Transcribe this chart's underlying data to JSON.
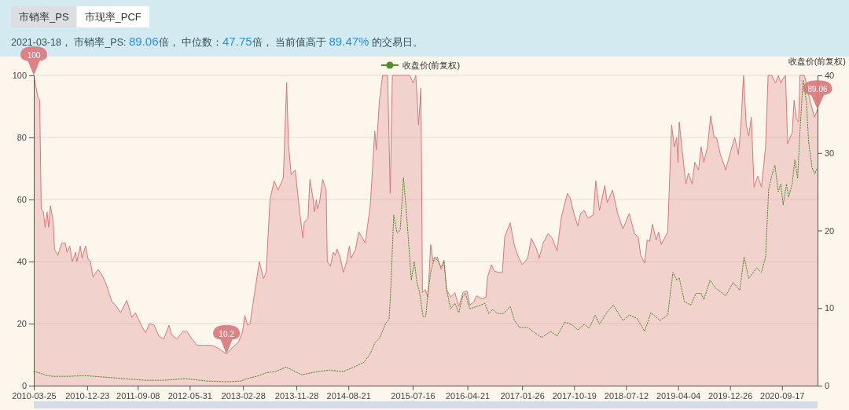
{
  "chart_data": {
    "type": "area",
    "subtitle": "2021-03-18， 市销率_PS: 89.06倍， 中位数：47.75倍， 当前值高于 89.47% 的交易日。",
    "y2label": "收盘价(前复权)",
    "annotations": [
      "市销率_PS",
      "市现率_PCF",
      {
        "text": "100",
        "x": "2010-03-25",
        "y": 100
      },
      {
        "text": "10.2",
        "x": "2012-12-05",
        "y": 10.2
      },
      {
        "text": "89.06",
        "x": "2021-03-18",
        "y": 89.06
      }
    ],
    "xlim": [
      "2010-03-25",
      "2021-03-18"
    ],
    "xticks": [
      "2010-03-25",
      "2010-12-23",
      "2011-09-08",
      "2012-05-31",
      "2013-02-28",
      "2013-11-28",
      "2014-08-21",
      "2015-07-16",
      "2016-04-21",
      "2017-01-26",
      "2017-10-19",
      "2018-07-12",
      "2019-04-04",
      "2019-12-26",
      "2020-09-17"
    ],
    "ylim": [
      0,
      100
    ],
    "yticks": [
      0,
      20,
      40,
      60,
      80,
      100
    ],
    "y2lim": [
      0,
      40
    ],
    "y2ticks": [
      0,
      10,
      20,
      30,
      40
    ],
    "grid": "y",
    "legend": "top",
    "series": [
      {
        "color": "#d9777b",
        "x": [
          "2010-03-25",
          "2010-04-15",
          "2010-04-24",
          "2010-05-02",
          "2010-05-13",
          "2010-05-22",
          "2010-06-01",
          "2010-06-09",
          "2010-06-18",
          "2010-07-02",
          "2010-07-09",
          "2010-07-26",
          "2010-08-15",
          "2010-09-02",
          "2010-09-11",
          "2010-09-25",
          "2010-10-08",
          "2010-10-25",
          "2010-10-31",
          "2010-11-18",
          "2010-11-27",
          "2010-12-05",
          "2010-12-15",
          "2010-12-27",
          "2011-01-09",
          "2011-01-22",
          "2011-02-17",
          "2011-03-15",
          "2011-04-03",
          "2011-04-29",
          "2011-05-17",
          "2011-06-12",
          "2011-07-14",
          "2011-08-09",
          "2011-08-27",
          "2011-09-30",
          "2011-10-19",
          "2011-11-06",
          "2011-12-01",
          "2011-12-25",
          "2012-01-19",
          "2012-02-15",
          "2012-02-28",
          "2012-03-26",
          "2012-04-27",
          "2012-05-16",
          "2012-06-12",
          "2012-07-09",
          "2012-08-12",
          "2012-09-22",
          "2012-10-25",
          "2012-12-05",
          "2013-01-08",
          "2013-02-04",
          "2013-02-24",
          "2013-03-09",
          "2013-03-23",
          "2013-04-05",
          "2013-04-25",
          "2013-05-22",
          "2013-06-13",
          "2013-06-26",
          "2013-07-16",
          "2013-08-06",
          "2013-08-26",
          "2013-09-22",
          "2013-10-09",
          "2013-10-18",
          "2013-11-01",
          "2013-11-22",
          "2013-12-11",
          "2013-12-31",
          "2014-01-07",
          "2014-01-26",
          "2014-02-05",
          "2014-02-22",
          "2014-02-28",
          "2014-03-10",
          "2014-03-16",
          "2014-03-26",
          "2014-04-11",
          "2014-04-29",
          "2014-05-05",
          "2014-05-21",
          "2014-06-04",
          "2014-06-14",
          "2014-06-24",
          "2014-07-09",
          "2014-07-26",
          "2014-08-12",
          "2014-08-26",
          "2014-09-03",
          "2014-09-27",
          "2014-10-13",
          "2014-11-15",
          "2014-12-11",
          "2015-01-03",
          "2015-01-11",
          "2015-01-27",
          "2015-02-12",
          "2015-03-10",
          "2015-03-23",
          "2015-04-03",
          "2015-07-01",
          "2015-07-18",
          "2015-08-01",
          "2015-08-15",
          "2015-08-27",
          "2015-09-04",
          "2015-09-18",
          "2015-10-02",
          "2015-10-16",
          "2015-10-28",
          "2015-11-19",
          "2015-12-09",
          "2015-12-23",
          "2016-01-06",
          "2016-01-26",
          "2016-02-17",
          "2016-03-08",
          "2016-03-29",
          "2016-04-19",
          "2016-05-03",
          "2016-05-24",
          "2016-06-07",
          "2016-07-05",
          "2016-07-25",
          "2016-08-02",
          "2016-08-22",
          "2016-09-05",
          "2016-09-24",
          "2016-10-17",
          "2016-10-29",
          "2016-11-26",
          "2016-12-18",
          "2017-01-07",
          "2017-01-27",
          "2017-02-23",
          "2017-03-14",
          "2017-04-10",
          "2017-04-23",
          "2017-05-14",
          "2017-06-08",
          "2017-06-29",
          "2017-07-24",
          "2017-08-14",
          "2017-09-02",
          "2017-09-15",
          "2017-09-29",
          "2017-10-18",
          "2017-11-07",
          "2017-11-21",
          "2017-12-10",
          "2017-12-29",
          "2018-01-25",
          "2018-02-07",
          "2018-02-26",
          "2018-03-25",
          "2018-04-07",
          "2018-05-04",
          "2018-05-30",
          "2018-06-26",
          "2018-07-28",
          "2018-08-24",
          "2018-09-12",
          "2018-09-25",
          "2018-10-15",
          "2018-10-28",
          "2018-11-10",
          "2018-11-24",
          "2018-12-13",
          "2018-12-26",
          "2019-01-08",
          "2019-02-10",
          "2019-03-02",
          "2019-03-16",
          "2019-03-28",
          "2019-04-04",
          "2019-04-10",
          "2019-04-23",
          "2019-05-14",
          "2019-05-27",
          "2019-06-15",
          "2019-06-29",
          "2019-07-18",
          "2019-07-31",
          "2019-08-14",
          "2019-09-02",
          "2019-09-18",
          "2019-10-06",
          "2019-10-18",
          "2019-11-07",
          "2019-12-04",
          "2019-12-29",
          "2020-01-19",
          "2020-02-07",
          "2020-02-20",
          "2020-03-04",
          "2020-03-18",
          "2020-03-31",
          "2020-04-13",
          "2020-04-27",
          "2020-05-16",
          "2020-06-04",
          "2020-06-25",
          "2020-07-08",
          "2020-07-27",
          "2020-08-15",
          "2020-08-29",
          "2020-09-11",
          "2020-09-23",
          "2020-10-05",
          "2020-10-16",
          "2020-10-28",
          "2020-11-08",
          "2020-11-18",
          "2020-11-30",
          "2020-12-11",
          "2020-12-18",
          "2021-01-10",
          "2021-02-07",
          "2021-03-02",
          "2021-03-18"
        ],
        "values": [
          100,
          93,
          92,
          57,
          56,
          51,
          56,
          51,
          58,
          53,
          44,
          42,
          46,
          46,
          43,
          45,
          40,
          43,
          40,
          45,
          41,
          43,
          45,
          41,
          40,
          35,
          37.5,
          35,
          32,
          27,
          26,
          23.5,
          27.5,
          22,
          23.5,
          19,
          17,
          20,
          19.5,
          16,
          15,
          19.5,
          16.5,
          15,
          17.5,
          17.5,
          15,
          13,
          13,
          13,
          12,
          10.2,
          12.5,
          14,
          17,
          22.6,
          19.5,
          20,
          28.6,
          40,
          34.5,
          36.6,
          60,
          66,
          63,
          67,
          97.7,
          78,
          68,
          69.5,
          58,
          47.6,
          52.6,
          54,
          66.5,
          60,
          56,
          60,
          57,
          59,
          66.5,
          63,
          40,
          38.5,
          43,
          42,
          44,
          41.5,
          36.5,
          40,
          45,
          41,
          44,
          49.6,
          46,
          58,
          82,
          76,
          92,
          100,
          100,
          62,
          100,
          100,
          97.5,
          100,
          84,
          96,
          30,
          31,
          28.5,
          45.5,
          40,
          41.5,
          37.5,
          40.5,
          31,
          28.5,
          30,
          25.5,
          30,
          30.5,
          26,
          27,
          29,
          28,
          28.5,
          35,
          39,
          37,
          36.5,
          36.5,
          48,
          52.5,
          45,
          41.5,
          39,
          41,
          47.5,
          44,
          41,
          46,
          49,
          47.5,
          43.5,
          54,
          59,
          62,
          60.5,
          55.5,
          51.5,
          55.5,
          56.5,
          54,
          55,
          66,
          56.5,
          64.5,
          59,
          63,
          55.5,
          50.5,
          55.5,
          49,
          48,
          42,
          39.5,
          47,
          46.5,
          52,
          47,
          49.5,
          45.5,
          49.5,
          84,
          77,
          80,
          72,
          85,
          77,
          65,
          68.5,
          65,
          72,
          69.5,
          77,
          72,
          77,
          87,
          80,
          80,
          74.5,
          69.5,
          75.5,
          80,
          74.5,
          84,
          100,
          84,
          80.5,
          86.5,
          64,
          67.5,
          64,
          77,
          100,
          100,
          97.5,
          100,
          97.5,
          99,
          100,
          78,
          80,
          81.5,
          92,
          86,
          85,
          100,
          100,
          92,
          86.5,
          89.06
        ]
      },
      {
        "type": "line",
        "name": "收盘价(前复权)",
        "axis": "y2",
        "color": "#4f8f2c",
        "line_style": "dotted",
        "x": [
          "2010-03-25",
          "2010-04-15",
          "2010-06-01",
          "2010-06-29",
          "2010-09-17",
          "2010-12-08",
          "2011-03-21",
          "2011-07-01",
          "2011-10-13",
          "2012-01-26",
          "2012-05-10",
          "2012-08-25",
          "2012-12-11",
          "2013-02-17",
          "2013-03-17",
          "2013-05-09",
          "2013-07-02",
          "2013-08-12",
          "2013-10-06",
          "2013-12-25",
          "2014-03-13",
          "2014-05-18",
          "2014-07-23",
          "2014-09-19",
          "2014-11-08",
          "2014-12-11",
          "2015-01-03",
          "2015-01-27",
          "2015-03-01",
          "2015-03-17",
          "2015-03-25",
          "2015-04-10",
          "2015-04-27",
          "2015-05-13",
          "2015-05-30",
          "2015-06-15",
          "2015-07-09",
          "2015-07-24",
          "2015-08-07",
          "2015-08-21",
          "2015-09-07",
          "2015-09-21",
          "2015-10-02",
          "2015-10-16",
          "2015-11-05",
          "2015-11-25",
          "2015-12-09",
          "2015-12-23",
          "2016-01-06",
          "2016-01-26",
          "2016-02-17",
          "2016-03-08",
          "2016-03-29",
          "2016-04-11",
          "2016-05-03",
          "2016-06-07",
          "2016-07-19",
          "2016-08-08",
          "2016-08-28",
          "2016-09-24",
          "2016-10-23",
          "2016-11-26",
          "2016-12-18",
          "2017-01-13",
          "2017-02-23",
          "2017-03-28",
          "2017-05-07",
          "2017-06-21",
          "2017-07-24",
          "2017-09-02",
          "2017-10-05",
          "2017-11-07",
          "2017-12-10",
          "2018-01-05",
          "2018-02-04",
          "2018-02-26",
          "2018-04-01",
          "2018-05-07",
          "2018-06-26",
          "2018-07-28",
          "2018-09-05",
          "2018-10-15",
          "2018-11-16",
          "2019-01-02",
          "2019-02-10",
          "2019-03-09",
          "2019-03-28",
          "2019-04-10",
          "2019-05-07",
          "2019-06-08",
          "2019-07-05",
          "2019-07-31",
          "2019-08-14",
          "2019-09-15",
          "2019-10-12",
          "2019-12-04",
          "2020-01-11",
          "2020-02-14",
          "2020-03-07",
          "2020-03-31",
          "2020-05-10",
          "2020-06-04",
          "2020-06-25",
          "2020-07-11",
          "2020-07-27",
          "2020-08-12",
          "2020-08-29",
          "2020-09-11",
          "2020-09-23",
          "2020-10-10",
          "2020-10-21",
          "2020-11-08",
          "2020-11-22",
          "2020-12-06",
          "2020-12-18",
          "2021-01-03",
          "2021-01-20",
          "2021-01-31",
          "2021-02-18",
          "2021-03-04",
          "2021-03-15"
        ],
        "values": [
          1.8,
          1.7,
          1.3,
          1.2,
          1.2,
          1.3,
          1.1,
          0.9,
          0.7,
          0.7,
          0.9,
          0.6,
          0.5,
          0.6,
          0.9,
          1.2,
          1.7,
          1.8,
          2.4,
          1.4,
          1.8,
          2.0,
          1.8,
          2.4,
          3.0,
          4.1,
          5.5,
          6.1,
          8.1,
          8.5,
          11.9,
          22,
          19.7,
          20,
          26.8,
          22,
          13.6,
          16,
          13.3,
          11.9,
          8.9,
          8.9,
          11.9,
          14.6,
          16.6,
          16,
          15.3,
          16,
          12.3,
          9.9,
          10.6,
          9.4,
          11.6,
          11.9,
          9.9,
          10.2,
          10.6,
          9.3,
          9.8,
          9.3,
          9.3,
          10.2,
          8.4,
          7.5,
          7.5,
          6.9,
          6.2,
          7.0,
          6.4,
          8.2,
          7.9,
          7.2,
          7.9,
          7.4,
          9.1,
          7.9,
          9.3,
          10.4,
          8.4,
          9.1,
          8.7,
          7.0,
          9.4,
          8.4,
          9.1,
          14.6,
          13.6,
          13.9,
          10.8,
          10.4,
          11.9,
          11.9,
          11.1,
          13.6,
          12.6,
          11.6,
          13.3,
          12.3,
          16.6,
          13.8,
          15.2,
          14.6,
          16.6,
          25.4,
          27.1,
          28.4,
          25.0,
          26.0,
          23.3,
          26.0,
          24.3,
          26.0,
          29.1,
          26.7,
          32.8,
          39.4,
          36.6,
          31.5,
          28.1,
          27.3,
          28.0
        ]
      }
    ]
  }
}
